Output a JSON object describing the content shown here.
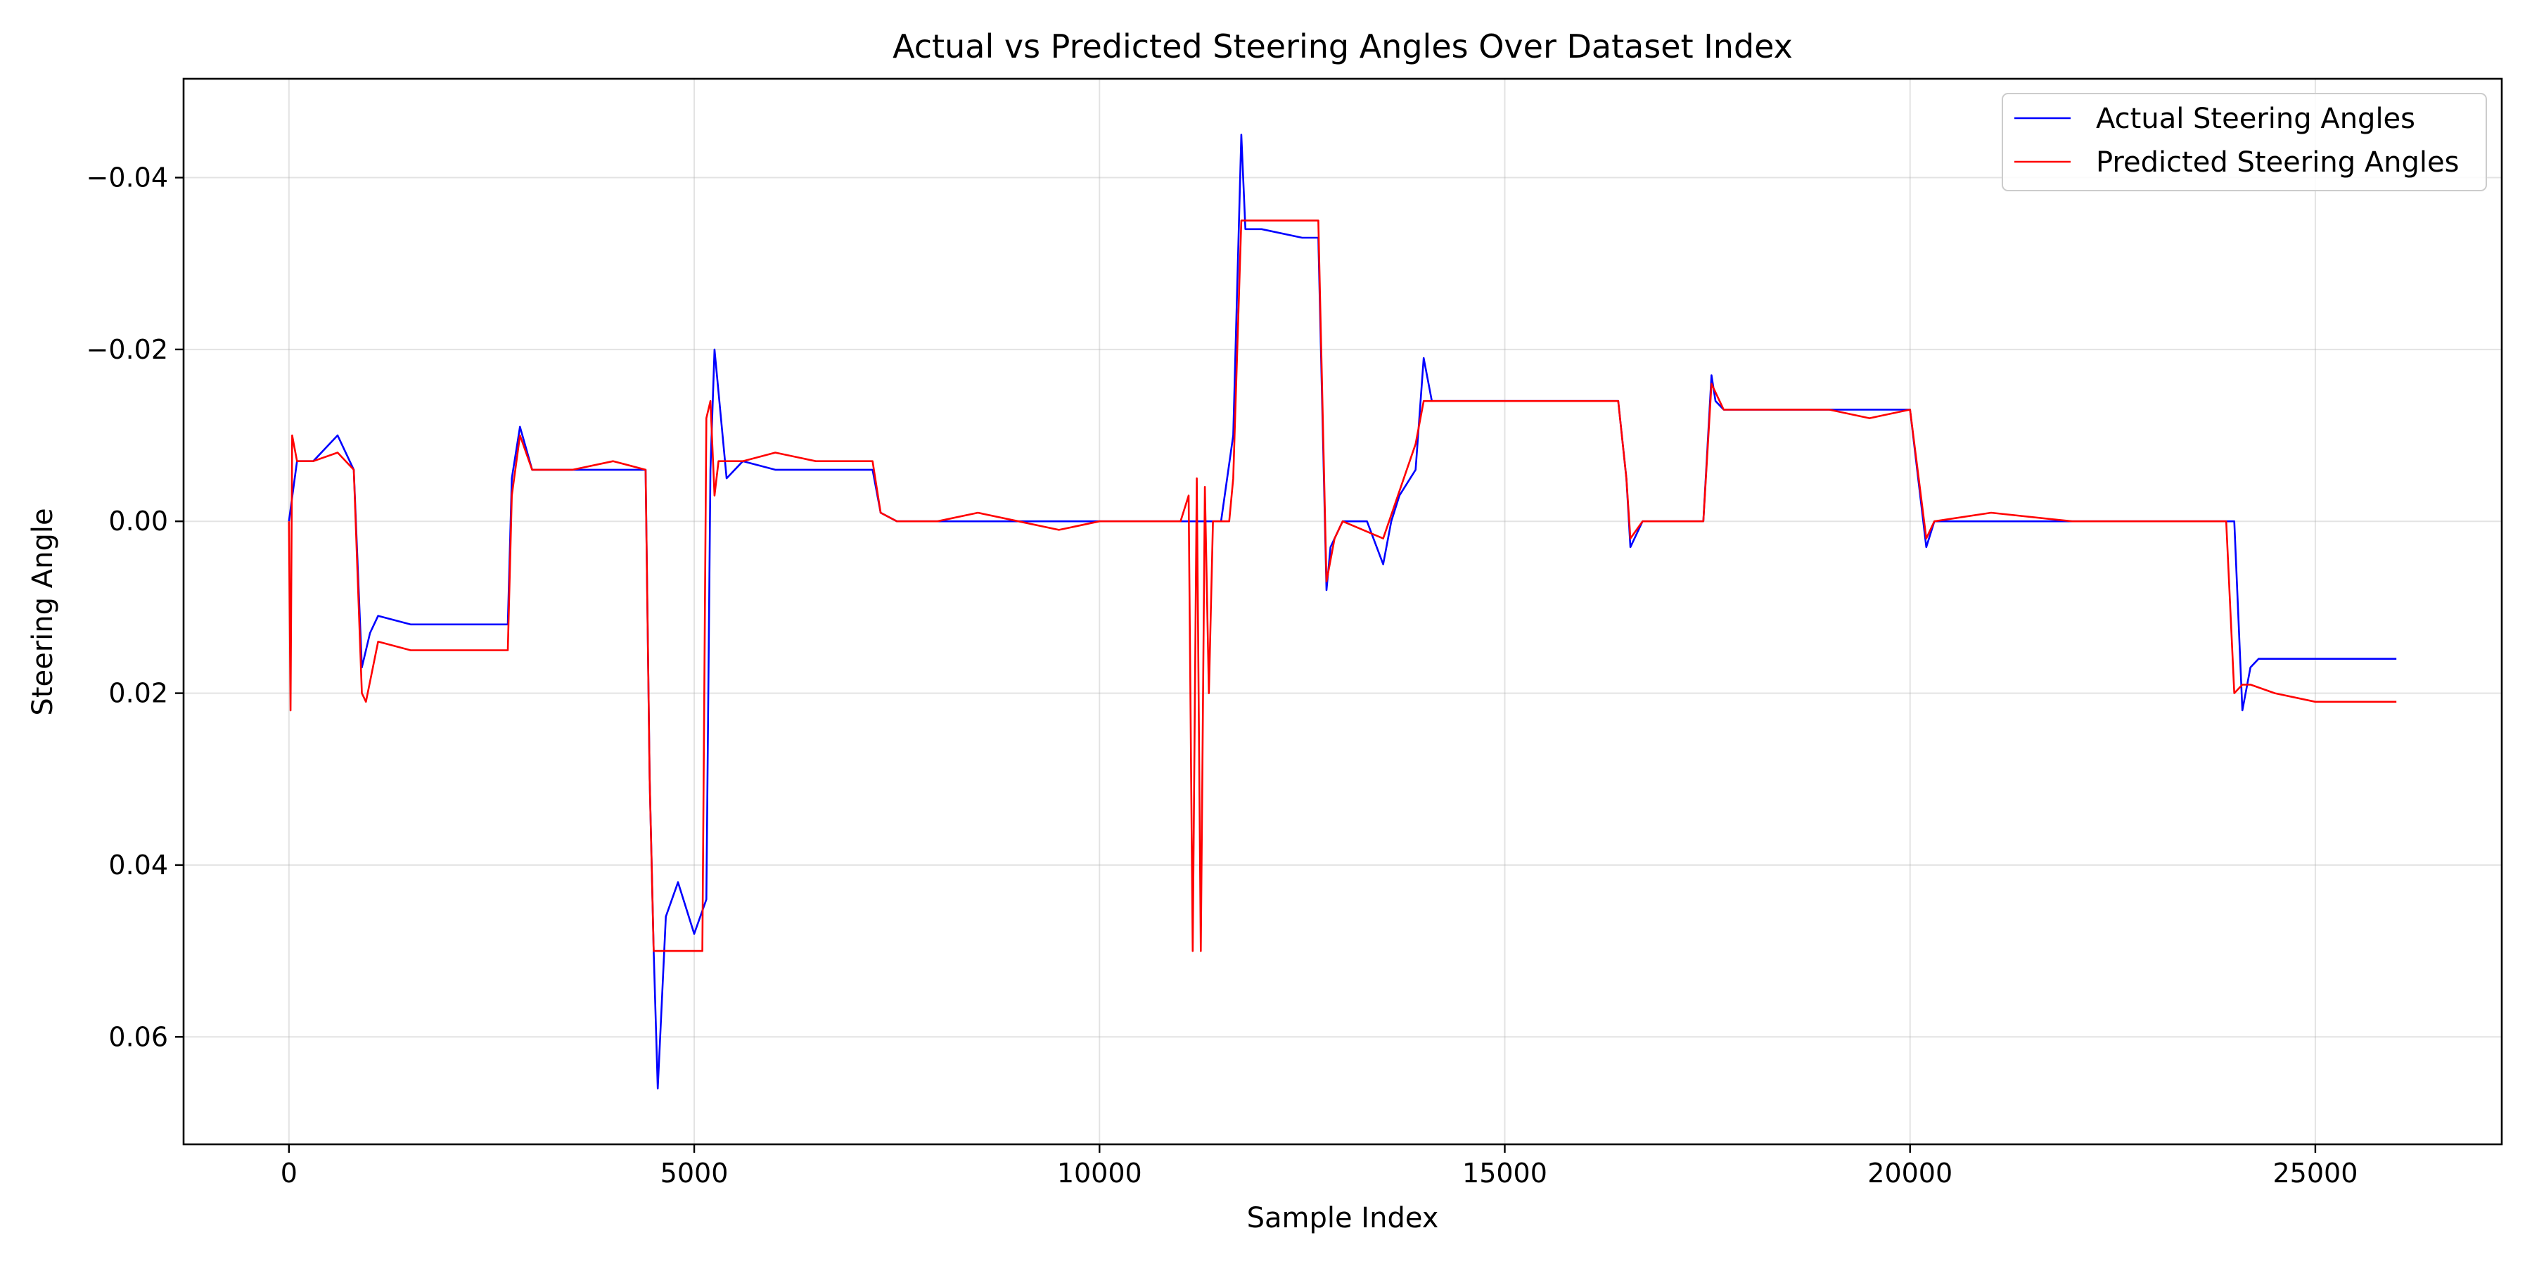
{
  "chart_data": {
    "type": "line",
    "title": "Actual vs Predicted Steering Angles Over Dataset Index",
    "xlabel": "Sample Index",
    "ylabel": "Steering Angle",
    "xlim": [
      -1300,
      27300
    ],
    "ylim": [
      0.0725,
      -0.0515
    ],
    "y_inverted": true,
    "xticks": [
      0,
      5000,
      10000,
      15000,
      20000,
      25000
    ],
    "xtick_labels": [
      "0",
      "5000",
      "10000",
      "15000",
      "20000",
      "25000"
    ],
    "yticks": [
      -0.04,
      -0.02,
      0.0,
      0.02,
      0.04,
      0.06
    ],
    "ytick_labels": [
      "−0.04",
      "−0.02",
      "0.00",
      "0.02",
      "0.04",
      "0.06"
    ],
    "grid": true,
    "legend_position": "top-right",
    "series": [
      {
        "name": "Actual Steering Angles",
        "color": "#0000ff",
        "x": [
          0,
          100,
          300,
          600,
          800,
          900,
          1000,
          1100,
          1500,
          2000,
          2700,
          2750,
          2850,
          3000,
          3500,
          4000,
          4400,
          4450,
          4500,
          4550,
          4650,
          4800,
          5000,
          5150,
          5200,
          5250,
          5400,
          5600,
          6000,
          6500,
          7200,
          7300,
          7500,
          8000,
          8500,
          9000,
          9500,
          10000,
          11000,
          11500,
          11650,
          11750,
          11800,
          12000,
          12500,
          12700,
          12800,
          12850,
          13000,
          13300,
          13500,
          13600,
          13700,
          13900,
          14000,
          14100,
          14200,
          14500,
          15500,
          16400,
          16500,
          16550,
          16700,
          17000,
          17450,
          17550,
          17600,
          17700,
          18000,
          19000,
          20000,
          20200,
          20300,
          20400,
          21000,
          22000,
          23000,
          23900,
          24000,
          24100,
          24200,
          24300,
          24500,
          25000,
          25500,
          26000
        ],
        "y": [
          0.0,
          -0.007,
          -0.007,
          -0.01,
          -0.006,
          0.017,
          0.013,
          0.011,
          0.012,
          0.012,
          0.012,
          -0.005,
          -0.011,
          -0.006,
          -0.006,
          -0.006,
          -0.006,
          0.03,
          0.05,
          0.066,
          0.046,
          0.042,
          0.048,
          0.044,
          -0.006,
          -0.02,
          -0.005,
          -0.007,
          -0.006,
          -0.006,
          -0.006,
          -0.001,
          0.0,
          0.0,
          0.0,
          0.0,
          0.0,
          0.0,
          0.0,
          0.0,
          -0.01,
          -0.045,
          -0.034,
          -0.034,
          -0.033,
          -0.033,
          0.008,
          0.003,
          0.0,
          0.0,
          0.005,
          0.0,
          -0.003,
          -0.006,
          -0.019,
          -0.014,
          -0.014,
          -0.014,
          -0.014,
          -0.014,
          -0.005,
          0.003,
          0.0,
          0.0,
          0.0,
          -0.017,
          -0.014,
          -0.013,
          -0.013,
          -0.013,
          -0.013,
          0.003,
          0.0,
          0.0,
          0.0,
          0.0,
          0.0,
          0.0,
          0.0,
          0.022,
          0.017,
          0.016,
          0.016,
          0.016,
          0.016,
          0.016
        ]
      },
      {
        "name": "Predicted Steering Angles",
        "color": "#ff0000",
        "x": [
          0,
          20,
          40,
          100,
          300,
          600,
          800,
          900,
          950,
          1100,
          1500,
          2000,
          2700,
          2750,
          2850,
          3000,
          3500,
          4000,
          4400,
          4450,
          4500,
          5100,
          5150,
          5200,
          5250,
          5300,
          5600,
          6000,
          6500,
          7200,
          7300,
          7500,
          8000,
          8500,
          9000,
          9500,
          10000,
          10500,
          11000,
          11100,
          11150,
          11200,
          11250,
          11300,
          11350,
          11400,
          11600,
          11650,
          11750,
          12700,
          12800,
          12900,
          13000,
          13500,
          13900,
          14000,
          14100,
          14500,
          15500,
          16400,
          16500,
          16550,
          16700,
          17000,
          17450,
          17550,
          17700,
          18000,
          19000,
          19500,
          20000,
          20200,
          20300,
          21000,
          22000,
          23000,
          23900,
          24000,
          24100,
          24200,
          24500,
          25000,
          25500,
          26000
        ],
        "y": [
          0.0,
          0.022,
          -0.01,
          -0.007,
          -0.007,
          -0.008,
          -0.006,
          0.02,
          0.021,
          0.014,
          0.015,
          0.015,
          0.015,
          -0.003,
          -0.01,
          -0.006,
          -0.006,
          -0.007,
          -0.006,
          0.03,
          0.05,
          0.05,
          -0.012,
          -0.014,
          -0.003,
          -0.007,
          -0.007,
          -0.008,
          -0.007,
          -0.007,
          -0.001,
          0.0,
          0.0,
          -0.001,
          0.0,
          0.001,
          0.0,
          0.0,
          0.0,
          -0.003,
          0.05,
          -0.005,
          0.05,
          -0.004,
          0.02,
          0.0,
          0.0,
          -0.005,
          -0.035,
          -0.035,
          0.007,
          0.002,
          0.0,
          0.002,
          -0.009,
          -0.014,
          -0.014,
          -0.014,
          -0.014,
          -0.014,
          -0.005,
          0.002,
          0.0,
          0.0,
          0.0,
          -0.016,
          -0.013,
          -0.013,
          -0.013,
          -0.012,
          -0.013,
          0.002,
          0.0,
          -0.001,
          0.0,
          0.0,
          0.0,
          0.02,
          0.019,
          0.019,
          0.02,
          0.021,
          0.021,
          0.021
        ]
      }
    ]
  }
}
